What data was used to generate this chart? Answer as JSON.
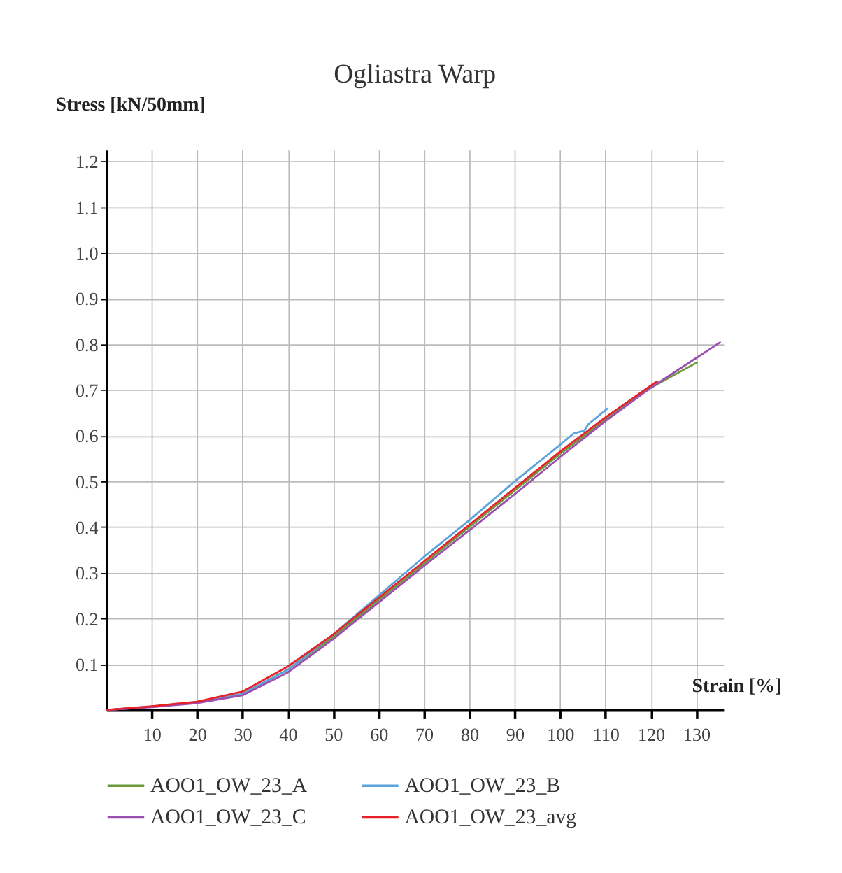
{
  "chart_data": {
    "type": "line",
    "title": "Ogliastra Warp",
    "xlabel": "Strain [%]",
    "ylabel": "Stress [kN/50mm]",
    "xlim": [
      0,
      136
    ],
    "ylim": [
      0,
      1.225
    ],
    "xticks": [
      10,
      20,
      30,
      40,
      50,
      60,
      70,
      80,
      90,
      100,
      110,
      120,
      130
    ],
    "yticks": [
      0.1,
      0.2,
      0.3,
      0.4,
      0.5,
      0.6,
      0.7,
      0.8,
      0.9,
      {
        "value": 1.0,
        "label": "1.0"
      },
      1.1,
      1.2
    ],
    "grid": true,
    "legend": "bottom",
    "marker": "none",
    "line_style": "solid",
    "series": [
      {
        "name": "AOO1_OW_23_A",
        "color": "#6a9a3a",
        "x": [
          30,
          40,
          50,
          60,
          70,
          80,
          90,
          100,
          110,
          120,
          130.3
        ],
        "values": [
          0.035,
          0.088,
          0.16,
          0.24,
          0.32,
          0.4,
          0.48,
          0.56,
          0.635,
          0.705,
          0.761
        ]
      },
      {
        "name": "AOO1_OW_23_B",
        "color": "#5ba3dd",
        "x": [
          0,
          10,
          20,
          30,
          40,
          50,
          60,
          70,
          80,
          90,
          100,
          103,
          105.3,
          106.2,
          110.5
        ],
        "values": [
          0,
          0.007,
          0.016,
          0.035,
          0.088,
          0.165,
          0.25,
          0.335,
          0.415,
          0.5,
          0.58,
          0.605,
          0.611,
          0.625,
          0.66
        ]
      },
      {
        "name": "AOO1_OW_23_C",
        "color": "#9b4fb0",
        "x": [
          0,
          10,
          20,
          30,
          40,
          50,
          60,
          70,
          80,
          90,
          100,
          110,
          120,
          130,
          135.4
        ],
        "values": [
          0,
          0.006,
          0.015,
          0.032,
          0.082,
          0.155,
          0.235,
          0.315,
          0.393,
          0.472,
          0.553,
          0.632,
          0.705,
          0.77,
          0.805
        ]
      },
      {
        "name": "AOO1_OW_23_avg",
        "color": "#e8202a",
        "x": [
          0,
          10,
          20,
          30,
          40,
          50,
          60,
          70,
          80,
          90,
          100,
          110,
          121.5
        ],
        "values": [
          0,
          0.008,
          0.018,
          0.04,
          0.095,
          0.165,
          0.245,
          0.325,
          0.405,
          0.485,
          0.565,
          0.64,
          0.72
        ]
      }
    ]
  }
}
